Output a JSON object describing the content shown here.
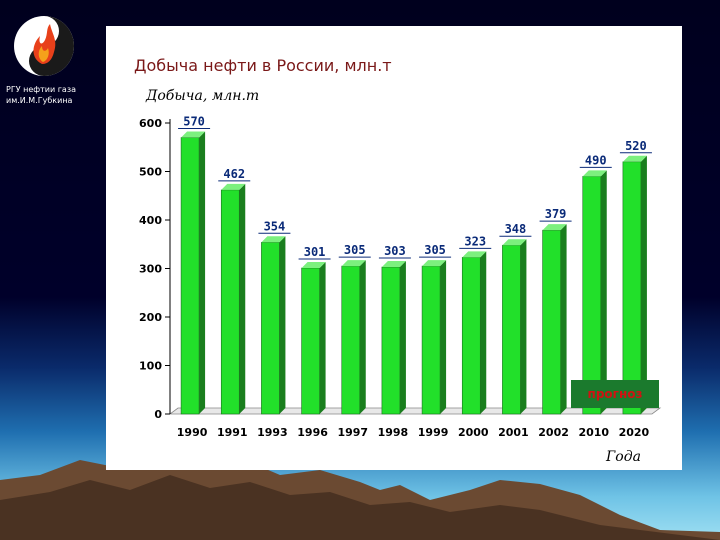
{
  "org": {
    "line1": "РГУ нефтии газа",
    "line2": "им.И.М.Губкина"
  },
  "colors": {
    "bar": "#22e02a",
    "bar_dark": "#1a7e1e",
    "bar_top": "#7cf07e",
    "value_label": "#0a2a78",
    "title": "#7a1818",
    "note_bg": "#1b7a2d",
    "note_text": "#d01212"
  },
  "chart_data": {
    "type": "bar",
    "title": "Добыча нефти в России, млн.т",
    "ylabel": "Добыча, млн.т",
    "xlabel": "Года",
    "categories": [
      "1990",
      "1991",
      "1993",
      "1996",
      "1997",
      "1998",
      "1999",
      "2000",
      "2001",
      "2002",
      "2010",
      "2020"
    ],
    "values": [
      570,
      462,
      354,
      301,
      305,
      303,
      305,
      323,
      348,
      379,
      490,
      520
    ],
    "value_labels": [
      "570",
      "462",
      "354",
      "301",
      "305",
      "303",
      "305",
      "323",
      "348",
      "379",
      "490",
      "520"
    ],
    "ylim": [
      0,
      600
    ],
    "yticks": [
      "0",
      "100",
      "200",
      "300",
      "400",
      "500",
      "600"
    ],
    "grid": false,
    "annotation": "прогноз"
  }
}
